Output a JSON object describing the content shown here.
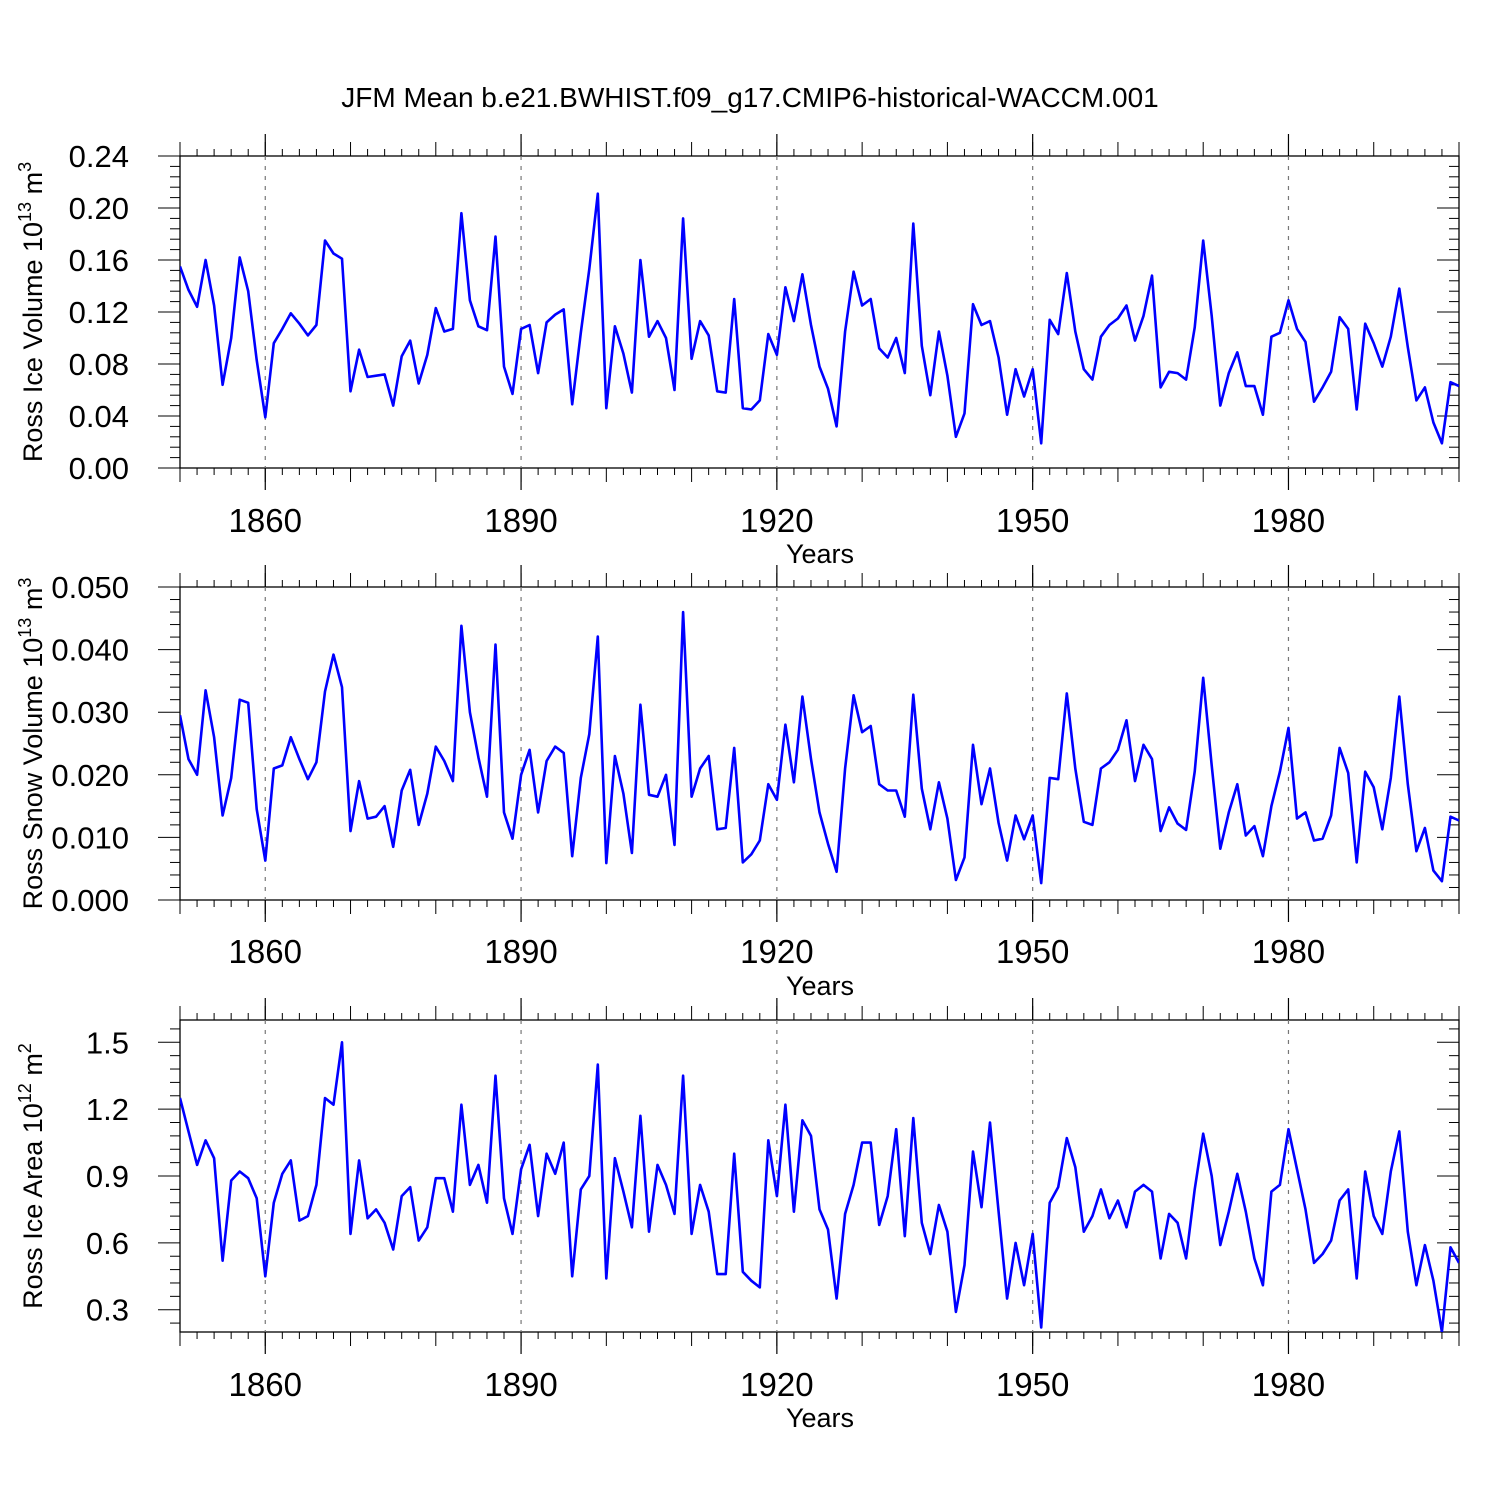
{
  "chart_data": {
    "title": "JFM Mean b.e21.BWHIST.f09_g17.CMIP6-historical-WACCM.001",
    "line_color": "#0000ff",
    "grid_color": "#777777",
    "x_start": 1850,
    "xlim": [
      1850,
      2000
    ],
    "x_ticks": [
      1860,
      1890,
      1920,
      1950,
      1980
    ],
    "x_tick_labels": [
      "1860",
      "1890",
      "1920",
      "1950",
      "1980"
    ],
    "panels": [
      {
        "type": "line",
        "id": "ice-volume",
        "ylabel": "Ross Ice Volume 10",
        "ylabel_exp": "13",
        "ylabel_unit": "m",
        "ylabel_unit_exp": "3",
        "xlabel": "Years",
        "ylim": [
          0,
          0.24
        ],
        "y_ticks": [
          "0.00",
          "0.04",
          "0.08",
          "0.12",
          "0.16",
          "0.20",
          "0.24"
        ],
        "values": [
          0.155,
          0.137,
          0.124,
          0.16,
          0.125,
          0.064,
          0.1,
          0.162,
          0.136,
          0.083,
          0.039,
          0.096,
          0.107,
          0.119,
          0.111,
          0.102,
          0.11,
          0.175,
          0.165,
          0.161,
          0.059,
          0.091,
          0.07,
          0.071,
          0.072,
          0.048,
          0.086,
          0.098,
          0.065,
          0.087,
          0.123,
          0.105,
          0.107,
          0.196,
          0.129,
          0.109,
          0.106,
          0.178,
          0.078,
          0.057,
          0.107,
          0.11,
          0.073,
          0.112,
          0.118,
          0.122,
          0.049,
          0.104,
          0.153,
          0.211,
          0.046,
          0.109,
          0.088,
          0.058,
          0.16,
          0.101,
          0.113,
          0.1,
          0.06,
          0.192,
          0.084,
          0.113,
          0.102,
          0.059,
          0.058,
          0.13,
          0.046,
          0.045,
          0.052,
          0.103,
          0.087,
          0.139,
          0.113,
          0.149,
          0.11,
          0.078,
          0.061,
          0.032,
          0.105,
          0.151,
          0.125,
          0.13,
          0.092,
          0.085,
          0.1,
          0.073,
          0.188,
          0.094,
          0.056,
          0.105,
          0.071,
          0.024,
          0.042,
          0.126,
          0.11,
          0.113,
          0.085,
          0.041,
          0.076,
          0.055,
          0.076,
          0.019,
          0.114,
          0.103,
          0.15,
          0.105,
          0.076,
          0.068,
          0.101,
          0.11,
          0.115,
          0.125,
          0.098,
          0.117,
          0.148,
          0.062,
          0.074,
          0.073,
          0.068,
          0.108,
          0.175,
          0.117,
          0.048,
          0.073,
          0.089,
          0.063,
          0.063,
          0.041,
          0.101,
          0.104,
          0.129,
          0.107,
          0.097,
          0.051,
          0.062,
          0.074,
          0.116,
          0.107,
          0.045,
          0.111,
          0.096,
          0.078,
          0.101,
          0.138,
          0.093,
          0.052,
          0.062,
          0.035,
          0.019,
          0.066,
          0.063
        ]
      },
      {
        "type": "line",
        "id": "snow-volume",
        "ylabel": "Ross Snow Volume 10",
        "ylabel_exp": "13",
        "ylabel_unit": "m",
        "ylabel_unit_exp": "3",
        "xlabel": "Years",
        "ylim": [
          0,
          0.05
        ],
        "y_ticks": [
          "0.000",
          "0.010",
          "0.020",
          "0.030",
          "0.040",
          "0.050"
        ],
        "values": [
          0.0295,
          0.0225,
          0.02,
          0.0335,
          0.026,
          0.0135,
          0.0195,
          0.032,
          0.0315,
          0.0145,
          0.0063,
          0.021,
          0.0215,
          0.026,
          0.0225,
          0.0193,
          0.022,
          0.0333,
          0.0392,
          0.034,
          0.011,
          0.019,
          0.013,
          0.0133,
          0.015,
          0.0085,
          0.0175,
          0.0208,
          0.012,
          0.017,
          0.0245,
          0.0222,
          0.019,
          0.0438,
          0.03,
          0.0228,
          0.0165,
          0.0408,
          0.014,
          0.0098,
          0.02,
          0.024,
          0.014,
          0.0222,
          0.0245,
          0.0235,
          0.007,
          0.0195,
          0.0265,
          0.0421,
          0.0059,
          0.023,
          0.017,
          0.0075,
          0.0312,
          0.0168,
          0.0165,
          0.02,
          0.0088,
          0.046,
          0.0165,
          0.021,
          0.023,
          0.0113,
          0.0115,
          0.0243,
          0.006,
          0.0073,
          0.0095,
          0.0185,
          0.016,
          0.028,
          0.0188,
          0.0325,
          0.0225,
          0.014,
          0.009,
          0.0045,
          0.021,
          0.0327,
          0.0268,
          0.0278,
          0.0185,
          0.0175,
          0.0175,
          0.0133,
          0.0328,
          0.0178,
          0.0113,
          0.0188,
          0.013,
          0.0032,
          0.0068,
          0.0248,
          0.0153,
          0.021,
          0.0123,
          0.0063,
          0.0135,
          0.0097,
          0.0135,
          0.0027,
          0.0195,
          0.0193,
          0.033,
          0.021,
          0.0125,
          0.012,
          0.021,
          0.022,
          0.024,
          0.0287,
          0.019,
          0.0248,
          0.0225,
          0.011,
          0.0148,
          0.0122,
          0.0112,
          0.0205,
          0.0355,
          0.0215,
          0.0082,
          0.014,
          0.0185,
          0.0103,
          0.0118,
          0.007,
          0.015,
          0.0205,
          0.0275,
          0.013,
          0.014,
          0.0095,
          0.0098,
          0.0135,
          0.0243,
          0.0203,
          0.006,
          0.0205,
          0.018,
          0.0113,
          0.0195,
          0.0325,
          0.0185,
          0.0078,
          0.0115,
          0.0047,
          0.003,
          0.0133,
          0.0127
        ]
      },
      {
        "type": "line",
        "id": "ice-area",
        "ylabel": "Ross Ice Area 10",
        "ylabel_exp": "12",
        "ylabel_unit": "m",
        "ylabel_unit_exp": "2",
        "xlabel": "Years",
        "ylim": [
          0.2,
          1.6
        ],
        "y_ticks": [
          "0.3",
          "0.6",
          "0.9",
          "1.2",
          "1.5"
        ],
        "y_tick_values": [
          0.3,
          0.6,
          0.9,
          1.2,
          1.5
        ],
        "values": [
          1.25,
          1.1,
          0.95,
          1.06,
          0.98,
          0.52,
          0.88,
          0.92,
          0.89,
          0.8,
          0.45,
          0.78,
          0.91,
          0.97,
          0.7,
          0.72,
          0.86,
          1.25,
          1.22,
          1.5,
          0.64,
          0.97,
          0.71,
          0.75,
          0.69,
          0.57,
          0.81,
          0.85,
          0.61,
          0.67,
          0.89,
          0.89,
          0.74,
          1.22,
          0.86,
          0.95,
          0.78,
          1.35,
          0.8,
          0.64,
          0.93,
          1.04,
          0.72,
          1.0,
          0.91,
          1.05,
          0.45,
          0.84,
          0.9,
          1.4,
          0.44,
          0.98,
          0.83,
          0.67,
          1.17,
          0.65,
          0.95,
          0.86,
          0.73,
          1.35,
          0.64,
          0.86,
          0.74,
          0.46,
          0.46,
          1.0,
          0.47,
          0.43,
          0.4,
          1.06,
          0.81,
          1.22,
          0.74,
          1.15,
          1.08,
          0.75,
          0.66,
          0.35,
          0.73,
          0.86,
          1.05,
          1.05,
          0.68,
          0.81,
          1.11,
          0.63,
          1.16,
          0.69,
          0.55,
          0.77,
          0.65,
          0.29,
          0.5,
          1.01,
          0.76,
          1.14,
          0.74,
          0.35,
          0.6,
          0.41,
          0.64,
          0.22,
          0.78,
          0.85,
          1.07,
          0.94,
          0.65,
          0.72,
          0.84,
          0.71,
          0.79,
          0.67,
          0.83,
          0.86,
          0.83,
          0.53,
          0.73,
          0.69,
          0.53,
          0.84,
          1.09,
          0.9,
          0.59,
          0.74,
          0.91,
          0.74,
          0.53,
          0.41,
          0.83,
          0.86,
          1.11,
          0.93,
          0.75,
          0.51,
          0.55,
          0.61,
          0.79,
          0.84,
          0.44,
          0.92,
          0.72,
          0.64,
          0.92,
          1.1,
          0.65,
          0.41,
          0.59,
          0.43,
          0.2,
          0.58,
          0.51
        ]
      }
    ]
  }
}
